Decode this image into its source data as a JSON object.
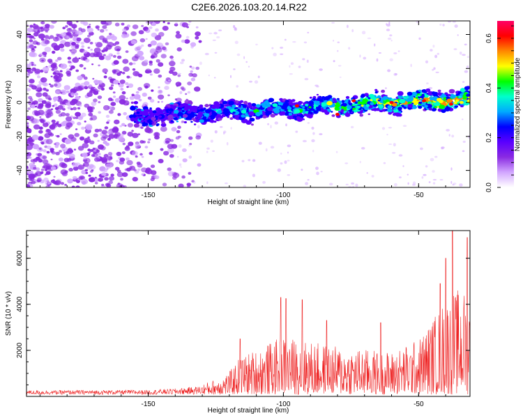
{
  "title": "C2E6.2026.103.20.14.R22",
  "colors": {
    "snr_line": "#ee2222",
    "axis": "#000000",
    "colormap": [
      "#ffffff",
      "#d2a6ff",
      "#8a2be2",
      "#5a00ff",
      "#0000ff",
      "#00aaff",
      "#00ffcc",
      "#00ff00",
      "#ffff00",
      "#ff8800",
      "#ff0000",
      "#ff0066"
    ]
  },
  "chart_data": [
    {
      "type": "heatmap",
      "xlabel": "Height of straight line (km)",
      "ylabel": "Frequency (Hz)",
      "xlim": [
        -195,
        -31
      ],
      "ylim": [
        -50,
        48
      ],
      "xticks": [
        -150,
        -100,
        -50
      ],
      "xtick_labels": [
        "-150",
        "-100",
        "-50"
      ],
      "yticks": [
        -40,
        -20,
        0,
        20,
        40
      ],
      "ytick_labels": [
        "-40",
        "-20",
        "0",
        "20",
        "40"
      ],
      "band": {
        "x_start": -156,
        "x_end": -31,
        "center_start": -8,
        "center_end": 2,
        "halfwidth": 6
      },
      "noise_region_x": [
        -195,
        -130
      ],
      "colorbar": {
        "label": "Normalized spectral amplitude",
        "range": [
          0.0,
          0.67
        ],
        "ticks": [
          0.0,
          0.2,
          0.4,
          0.6
        ],
        "tick_labels": [
          "0.0",
          "0.2",
          "0.4",
          "0.6"
        ]
      }
    },
    {
      "type": "line",
      "xlabel": "Height of straight line (km)",
      "ylabel": "SNR (10 * v/v)",
      "xlim": [
        -195,
        -31
      ],
      "ylim": [
        0,
        7200
      ],
      "xticks": [
        -150,
        -100,
        -50
      ],
      "xtick_labels": [
        "-150",
        "-100",
        "-50"
      ],
      "yticks": [
        2000,
        4000,
        6000
      ],
      "ytick_labels": [
        "2000",
        "4000",
        "6000"
      ],
      "envelope": {
        "x": [
          -195,
          -150,
          -140,
          -130,
          -125,
          -120,
          -116,
          -110,
          -100,
          -90,
          -80,
          -70,
          -60,
          -50,
          -45,
          -40,
          -35,
          -31
        ],
        "y": [
          220,
          240,
          300,
          420,
          600,
          900,
          1500,
          1800,
          2300,
          2100,
          1900,
          1800,
          1700,
          2200,
          3000,
          3800,
          4200,
          4000
        ]
      },
      "peaks": [
        {
          "x": -116,
          "y": 2500
        },
        {
          "x": -101,
          "y": 4300
        },
        {
          "x": -99,
          "y": 4250
        },
        {
          "x": -93,
          "y": 4200
        },
        {
          "x": -84,
          "y": 3300
        },
        {
          "x": -64,
          "y": 3200
        },
        {
          "x": -42,
          "y": 4900
        },
        {
          "x": -40,
          "y": 6000
        },
        {
          "x": -37.5,
          "y": 7200
        },
        {
          "x": -32,
          "y": 6900
        }
      ],
      "sample_count": 1200
    }
  ]
}
